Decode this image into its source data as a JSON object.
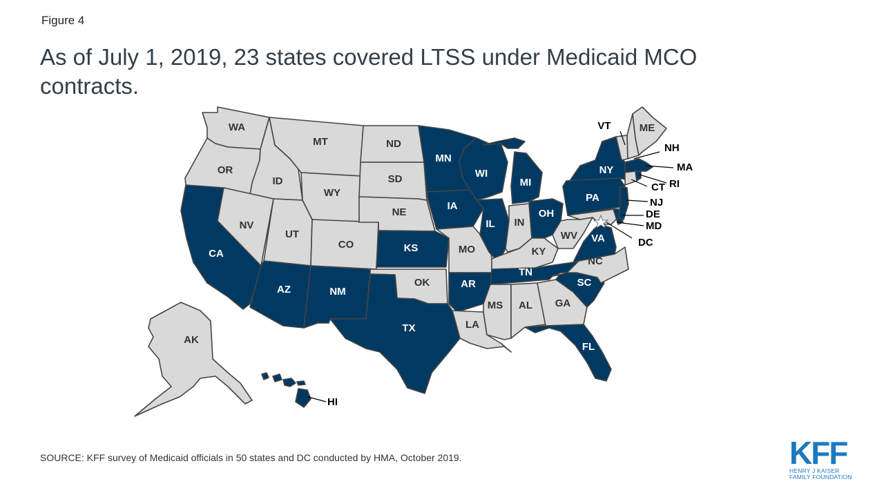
{
  "figure_label": "Figure 4",
  "title": "As of July 1, 2019, 23 states covered LTSS under Medicaid MCO contracts.",
  "source": "SOURCE: KFF survey  of Medicaid officials in 50 states and DC conducted by HMA, October 2019.",
  "logo": {
    "main": "KFF",
    "line1": "HENRY J KAISER",
    "line2": "FAMILY FOUNDATION"
  },
  "colors": {
    "covered": "#003a63",
    "not_covered": "#d9d9d9",
    "border": "#444444",
    "label_on_covered": "#ffffff",
    "label_on_other": "#333333"
  },
  "states": [
    {
      "abbr": "WA",
      "covered": false
    },
    {
      "abbr": "OR",
      "covered": false
    },
    {
      "abbr": "CA",
      "covered": true
    },
    {
      "abbr": "ID",
      "covered": false
    },
    {
      "abbr": "NV",
      "covered": false
    },
    {
      "abbr": "MT",
      "covered": false
    },
    {
      "abbr": "WY",
      "covered": false
    },
    {
      "abbr": "UT",
      "covered": false
    },
    {
      "abbr": "AZ",
      "covered": true
    },
    {
      "abbr": "CO",
      "covered": false
    },
    {
      "abbr": "NM",
      "covered": true
    },
    {
      "abbr": "ND",
      "covered": false
    },
    {
      "abbr": "SD",
      "covered": false
    },
    {
      "abbr": "NE",
      "covered": false
    },
    {
      "abbr": "KS",
      "covered": true
    },
    {
      "abbr": "OK",
      "covered": false
    },
    {
      "abbr": "TX",
      "covered": true
    },
    {
      "abbr": "MN",
      "covered": true
    },
    {
      "abbr": "IA",
      "covered": true
    },
    {
      "abbr": "MO",
      "covered": false
    },
    {
      "abbr": "AR",
      "covered": true
    },
    {
      "abbr": "LA",
      "covered": false
    },
    {
      "abbr": "WI",
      "covered": true
    },
    {
      "abbr": "IL",
      "covered": true
    },
    {
      "abbr": "MI",
      "covered": true
    },
    {
      "abbr": "IN",
      "covered": false
    },
    {
      "abbr": "OH",
      "covered": true
    },
    {
      "abbr": "KY",
      "covered": false
    },
    {
      "abbr": "TN",
      "covered": true
    },
    {
      "abbr": "MS",
      "covered": false
    },
    {
      "abbr": "AL",
      "covered": false
    },
    {
      "abbr": "GA",
      "covered": false
    },
    {
      "abbr": "FL",
      "covered": true
    },
    {
      "abbr": "SC",
      "covered": true
    },
    {
      "abbr": "NC",
      "covered": false
    },
    {
      "abbr": "VA",
      "covered": true
    },
    {
      "abbr": "WV",
      "covered": false
    },
    {
      "abbr": "PA",
      "covered": true
    },
    {
      "abbr": "NY",
      "covered": true
    },
    {
      "abbr": "VT",
      "covered": false
    },
    {
      "abbr": "NH",
      "covered": false
    },
    {
      "abbr": "ME",
      "covered": false
    },
    {
      "abbr": "MA",
      "covered": true
    },
    {
      "abbr": "RI",
      "covered": true
    },
    {
      "abbr": "CT",
      "covered": false
    },
    {
      "abbr": "NJ",
      "covered": true
    },
    {
      "abbr": "DE",
      "covered": true
    },
    {
      "abbr": "MD",
      "covered": false
    },
    {
      "abbr": "DC",
      "covered": false
    },
    {
      "abbr": "AK",
      "covered": false
    },
    {
      "abbr": "HI",
      "covered": true
    }
  ]
}
